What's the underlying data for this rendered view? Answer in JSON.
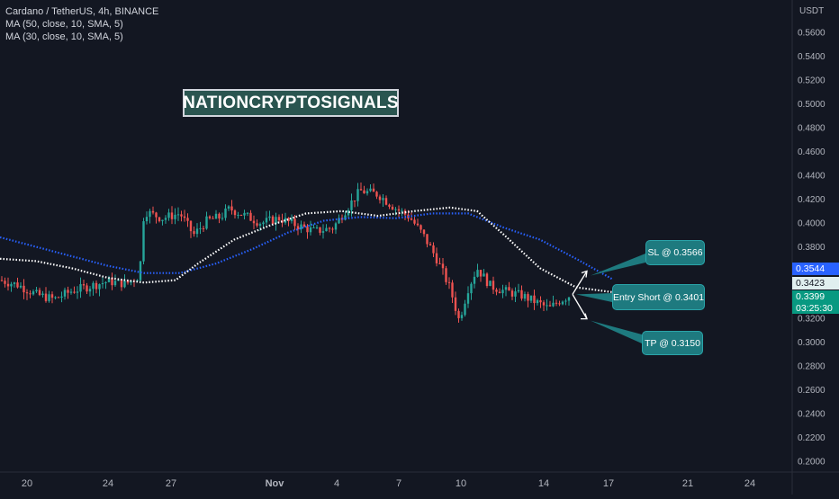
{
  "header": {
    "symbol_line": "Cardano / TetherUS, 4h, BINANCE",
    "ma1_line": "MA (50, close, 10, SMA, 5)",
    "ma2_line": "MA (30, close, 10, SMA, 5)"
  },
  "watermark": "NATIONCRYPTOSIGNALS",
  "price_axis": {
    "currency": "USDT",
    "ticks": [
      "0.5600",
      "0.5400",
      "0.5200",
      "0.5000",
      "0.4800",
      "0.4600",
      "0.4400",
      "0.4200",
      "0.4000",
      "0.3800",
      "0.3600",
      "0.3400",
      "0.3200",
      "0.3000",
      "0.2800",
      "0.2600",
      "0.2400",
      "0.2200",
      "0.2000"
    ]
  },
  "date_axis": {
    "ticks": [
      "20",
      "24",
      "27",
      "Nov",
      "4",
      "7",
      "10",
      "14",
      "17",
      "21",
      "24"
    ]
  },
  "axis_tags": {
    "ma_blue": {
      "value": "0.3544",
      "color": "#2962ff"
    },
    "ma_white": {
      "value": "0.3423",
      "color": "#e6f0f0"
    },
    "last_price": {
      "value": "0.3399",
      "color": "#089981"
    },
    "countdown": "03:25:30"
  },
  "callouts": {
    "sl": "SL @ 0.3566",
    "entry": "Entry Short @ 0.3401",
    "tp": "TP @ 0.3150"
  },
  "chart_data": {
    "type": "candlestick",
    "timeframe": "4h",
    "ylim": [
      0.19,
      0.575
    ],
    "series": [
      {
        "name": "MA (50, close, 10, SMA, 5)",
        "color": "#2962ff"
      },
      {
        "name": "MA (30, close, 10, SMA, 5)",
        "color": "#ffffff"
      }
    ],
    "levels": {
      "stop_loss": 0.3566,
      "entry_short": 0.3401,
      "take_profit": 0.315
    },
    "last_price": 0.3399
  }
}
